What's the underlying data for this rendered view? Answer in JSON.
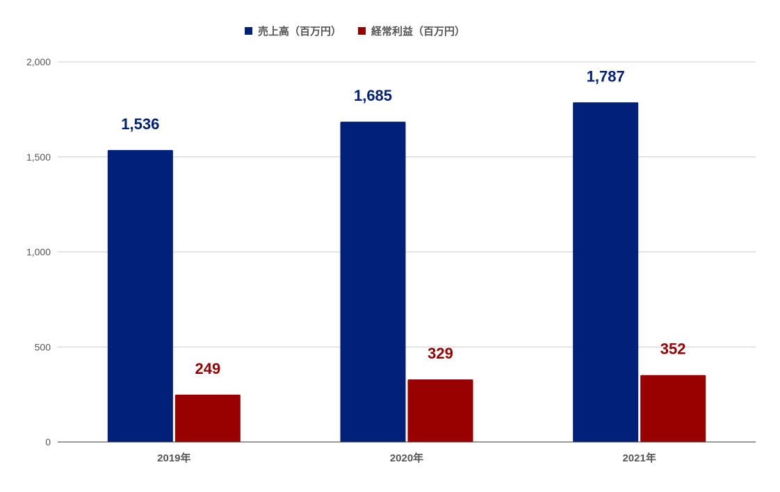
{
  "chart_data": {
    "type": "bar",
    "title": "",
    "xlabel": "",
    "ylabel": "",
    "categories": [
      "2019年",
      "2020年",
      "2021年"
    ],
    "ylim": [
      0,
      2000
    ],
    "yticks": [
      0,
      500,
      1000,
      1500,
      2000
    ],
    "ytick_labels": [
      "0",
      "500",
      "1,000",
      "1,500",
      "2,000"
    ],
    "grid": true,
    "legend_position": "top-center",
    "series": [
      {
        "name": "売上高（百万円）",
        "color": "#00207a",
        "values": [
          1536,
          1685,
          1787
        ],
        "labels": [
          "1,536",
          "1,685",
          "1,787"
        ]
      },
      {
        "name": "経常利益（百万円）",
        "color": "#990000",
        "values": [
          249,
          329,
          352
        ],
        "labels": [
          "249",
          "329",
          "352"
        ]
      }
    ]
  }
}
